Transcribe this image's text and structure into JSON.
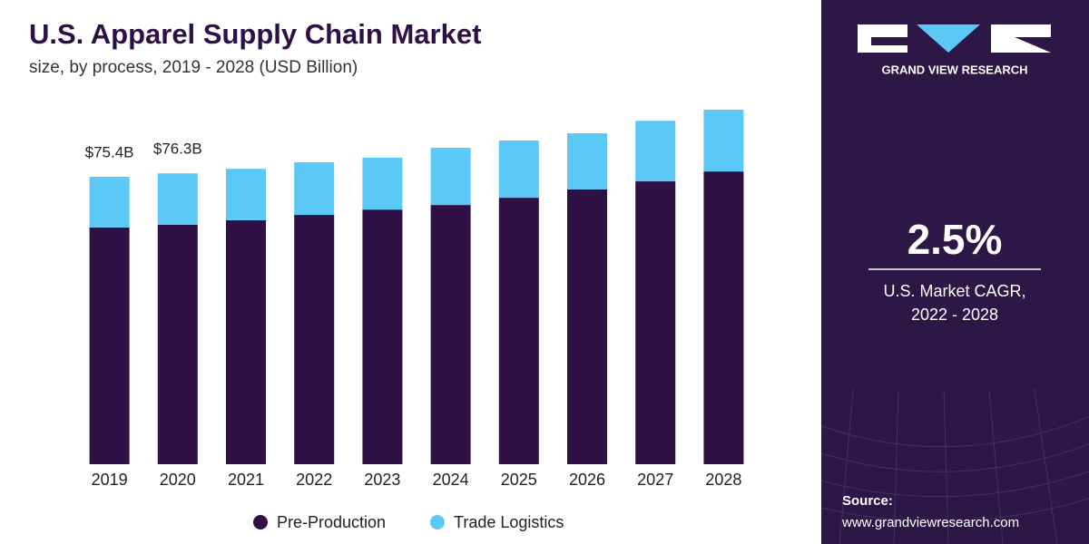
{
  "chart_data": {
    "type": "stacked_bar",
    "title": "U.S. Apparel Supply Chain Market",
    "subtitle": "size, by process, 2019 - 2028 (USD Billion)",
    "categories": [
      "2019",
      "2020",
      "2021",
      "2022",
      "2023",
      "2024",
      "2025",
      "2026",
      "2027",
      "2028"
    ],
    "series": [
      {
        "name": "Pre-Production",
        "color": "#2e1044",
        "values": [
          62.1,
          62.8,
          64.0,
          65.4,
          66.8,
          68.0,
          69.9,
          72.1,
          74.2,
          76.8
        ]
      },
      {
        "name": "Trade Logistics",
        "color": "#5bc8f5",
        "values": [
          13.3,
          13.5,
          13.5,
          13.8,
          13.6,
          15.0,
          15.0,
          14.7,
          15.9,
          16.2
        ]
      }
    ],
    "annotations": [
      "$75.4B",
      "$76.3B"
    ],
    "legend": "bottom",
    "brand": "GRAND VIEW RESEARCH",
    "cagr": "2.5%",
    "cagr_label": [
      "U.S. Market CAGR,",
      "2022 - 2028"
    ],
    "source_label": "Source:",
    "source": "www.grandviewresearch.com"
  }
}
